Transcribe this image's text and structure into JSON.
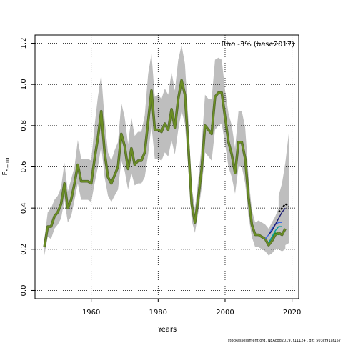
{
  "chart_data": {
    "type": "line",
    "xlabel": "Years",
    "ylabel": "F",
    "ylabel_sub": "5−10",
    "annotation": "Rho -3% (base2017)",
    "footer": "stockassessment.org, NEAcod2019, r11124 , git: 503cf91af157",
    "xlim": [
      1943.2,
      2022.0
    ],
    "ylim": [
      -0.04,
      1.24
    ],
    "x_ticks": [
      1960,
      1980,
      2000,
      2020
    ],
    "y_ticks": [
      0.0,
      0.2,
      0.4,
      0.6,
      0.8,
      1.0,
      1.2
    ],
    "x_tick_labels": [
      "1960",
      "1980",
      "2000",
      "2020"
    ],
    "y_tick_labels": [
      "0.0",
      "0.2",
      "0.4",
      "0.6",
      "0.8",
      "1.0",
      "1.2"
    ],
    "grid": true,
    "colors": {
      "ci_band": "#bebebe",
      "main_line": "#6b8e23",
      "main_line_outline": "#556b2f",
      "grid": "#000000",
      "retro": [
        "#228b22",
        "#00a0a0",
        "#4169e1",
        "#191970",
        "#000000"
      ]
    },
    "series": [
      {
        "years": [
          1946,
          1947,
          1948,
          1949,
          1950,
          1951,
          1952,
          1953,
          1954,
          1955,
          1956,
          1957,
          1958,
          1959,
          1960,
          1961,
          1962,
          1963,
          1964,
          1965,
          1966,
          1967,
          1968,
          1969,
          1970,
          1971,
          1972,
          1973,
          1974,
          1975,
          1976,
          1977,
          1978,
          1979,
          1980,
          1981,
          1982,
          1983,
          1984,
          1985,
          1986,
          1987,
          1988,
          1989,
          1990,
          1991,
          1992,
          1993,
          1994,
          1995,
          1996,
          1997,
          1998,
          1999,
          2000,
          2001,
          2002,
          2003,
          2004,
          2005,
          2006,
          2007,
          2008,
          2009,
          2010,
          2011,
          2012,
          2013,
          2014,
          2015,
          2016,
          2017,
          2018
        ],
        "values": [
          0.21,
          0.31,
          0.31,
          0.36,
          0.38,
          0.42,
          0.52,
          0.4,
          0.44,
          0.52,
          0.61,
          0.53,
          0.53,
          0.53,
          0.52,
          0.64,
          0.74,
          0.87,
          0.67,
          0.55,
          0.52,
          0.56,
          0.6,
          0.76,
          0.7,
          0.59,
          0.69,
          0.61,
          0.63,
          0.63,
          0.67,
          0.82,
          0.97,
          0.78,
          0.78,
          0.77,
          0.81,
          0.78,
          0.88,
          0.79,
          0.93,
          1.02,
          0.95,
          0.7,
          0.42,
          0.33,
          0.45,
          0.59,
          0.8,
          0.78,
          0.76,
          0.94,
          0.96,
          0.96,
          0.84,
          0.72,
          0.66,
          0.57,
          0.72,
          0.72,
          0.64,
          0.45,
          0.32,
          0.27,
          0.27,
          0.26,
          0.25,
          0.22,
          0.24,
          0.27,
          0.28,
          0.27,
          0.3
        ],
        "upper": [
          0.25,
          0.38,
          0.4,
          0.44,
          0.46,
          0.5,
          0.62,
          0.48,
          0.54,
          0.6,
          0.73,
          0.64,
          0.64,
          0.64,
          0.63,
          0.8,
          0.94,
          1.05,
          0.83,
          0.67,
          0.63,
          0.68,
          0.72,
          0.91,
          0.84,
          0.71,
          0.84,
          0.75,
          0.77,
          0.77,
          0.85,
          1.05,
          1.15,
          0.94,
          0.95,
          0.93,
          0.98,
          0.95,
          1.06,
          0.97,
          1.12,
          1.19,
          1.1,
          0.83,
          0.5,
          0.4,
          0.54,
          0.71,
          0.95,
          0.93,
          0.93,
          1.12,
          1.13,
          1.12,
          0.97,
          0.86,
          0.8,
          0.69,
          0.87,
          0.87,
          0.79,
          0.55,
          0.39,
          0.33,
          0.34,
          0.33,
          0.32,
          0.3,
          0.33,
          0.36,
          0.4,
          0.44,
          0.48
        ],
        "lower": [
          0.17,
          0.26,
          0.25,
          0.3,
          0.32,
          0.35,
          0.44,
          0.33,
          0.36,
          0.44,
          0.52,
          0.44,
          0.44,
          0.44,
          0.43,
          0.52,
          0.6,
          0.7,
          0.55,
          0.46,
          0.43,
          0.46,
          0.49,
          0.63,
          0.58,
          0.49,
          0.57,
          0.51,
          0.52,
          0.52,
          0.55,
          0.66,
          0.8,
          0.64,
          0.64,
          0.63,
          0.67,
          0.65,
          0.73,
          0.66,
          0.78,
          0.87,
          0.81,
          0.59,
          0.34,
          0.28,
          0.38,
          0.5,
          0.67,
          0.65,
          0.63,
          0.78,
          0.8,
          0.81,
          0.71,
          0.6,
          0.55,
          0.47,
          0.6,
          0.6,
          0.52,
          0.36,
          0.26,
          0.21,
          0.21,
          0.2,
          0.19,
          0.17,
          0.18,
          0.2,
          0.2,
          0.19,
          0.2
        ]
      },
      {
        "years": [
          2013,
          2014,
          2015,
          2016
        ],
        "values": [
          0.23,
          0.26,
          0.28,
          0.27
        ]
      },
      {
        "years": [
          2013,
          2014,
          2015,
          2016,
          2017
        ],
        "values": [
          0.23,
          0.26,
          0.29,
          0.31,
          0.31
        ]
      },
      {
        "years": [
          2012,
          2013,
          2014,
          2015,
          2016,
          2017
        ],
        "values": [
          0.25,
          0.27,
          0.3,
          0.32,
          0.33,
          0.33
        ]
      },
      {
        "years": [
          2013,
          2014,
          2015,
          2016,
          2017,
          2018
        ],
        "values": [
          0.27,
          0.29,
          0.32,
          0.35,
          0.38,
          0.4
        ]
      },
      {
        "years": [
          2016,
          2017,
          2018,
          2019
        ],
        "values": [
          0.38,
          0.4,
          0.42,
          0.41
        ]
      }
    ],
    "extended_band": {
      "years": [
        2016,
        2017,
        2018,
        2019
      ],
      "upper": [
        0.46,
        0.52,
        0.62,
        0.76
      ],
      "lower": [
        0.22,
        0.2,
        0.22,
        0.23
      ]
    }
  }
}
